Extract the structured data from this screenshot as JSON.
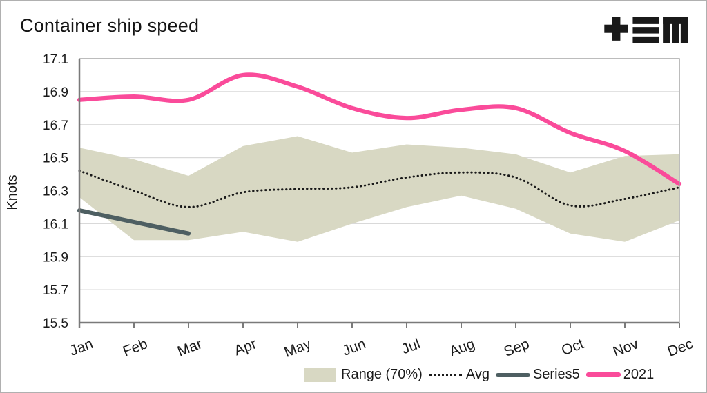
{
  "header": {
    "title": "Container ship speed",
    "logo": "tem-logo"
  },
  "chart_data": {
    "type": "line",
    "title": "Container ship speed",
    "xlabel": "",
    "ylabel": "Knots",
    "ylim": [
      15.5,
      17.1
    ],
    "ytick_step": 0.2,
    "ytick_labels": [
      "17.1",
      "16.9",
      "16.7",
      "16.5",
      "16.3",
      "16.1",
      "15.9",
      "15.7",
      "15.5"
    ],
    "categories": [
      "Jan",
      "Feb",
      "Mar",
      "Apr",
      "May",
      "Jun",
      "Jul",
      "Aug",
      "Sep",
      "Oct",
      "Nov",
      "Dec"
    ],
    "grid": "horizontal",
    "legend_position": "bottom-right",
    "series": [
      {
        "name": "Range (70%)",
        "type": "band",
        "color": "#d8d8c3",
        "upper": [
          16.56,
          16.49,
          16.39,
          16.57,
          16.63,
          16.53,
          16.58,
          16.56,
          16.52,
          16.41,
          16.51,
          16.52
        ],
        "lower": [
          16.26,
          16.0,
          16.0,
          16.05,
          15.99,
          16.1,
          16.2,
          16.27,
          16.19,
          16.04,
          15.99,
          16.12
        ]
      },
      {
        "name": "Avg",
        "type": "line",
        "style": "dotted",
        "color": "#1a1a1a",
        "values": [
          16.42,
          16.3,
          16.2,
          16.29,
          16.31,
          16.32,
          16.38,
          16.41,
          16.38,
          16.21,
          16.25,
          16.32
        ]
      },
      {
        "name": "Series5",
        "type": "line",
        "style": "solid",
        "color": "#4e5f62",
        "values": [
          16.18,
          16.11,
          16.04,
          null,
          null,
          null,
          null,
          null,
          null,
          null,
          null,
          null
        ]
      },
      {
        "name": "2021",
        "type": "line",
        "style": "solid",
        "color": "#fa4b9a",
        "values": [
          16.85,
          16.87,
          16.85,
          17.0,
          16.93,
          16.8,
          16.74,
          16.79,
          16.8,
          16.65,
          16.54,
          16.34
        ]
      }
    ],
    "colors": {
      "gridline": "#d9d9d9",
      "axis": "#7a7a7a",
      "plot_border": "#a6a6a6",
      "text": "#1a1a1a"
    }
  }
}
